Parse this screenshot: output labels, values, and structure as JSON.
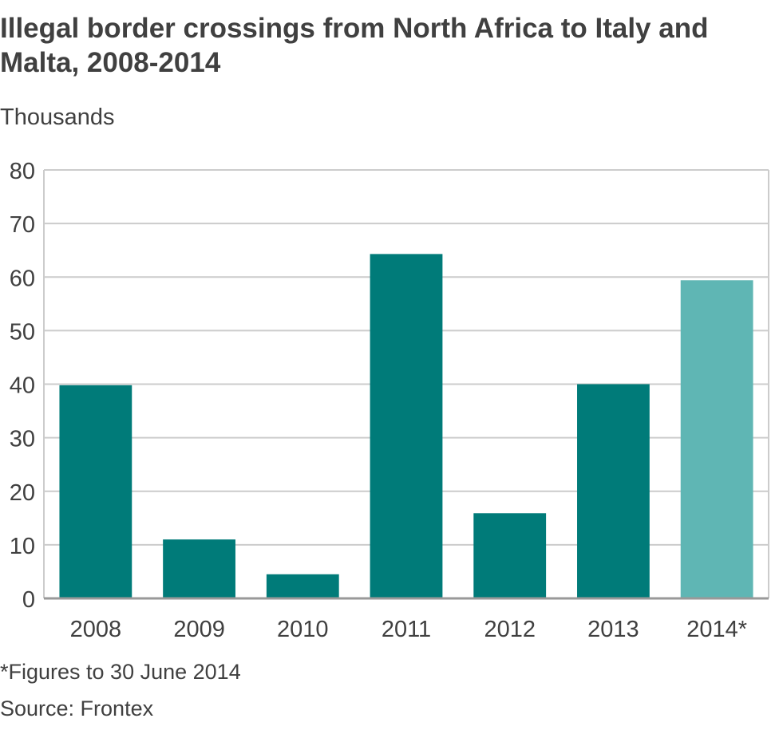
{
  "chart_data": {
    "type": "bar",
    "title": "Illegal border crossings from North Africa to Italy and Malta, 2008-2014",
    "subtitle": "Thousands",
    "categories": [
      "2008",
      "2009",
      "2010",
      "2011",
      "2012",
      "2013",
      "2014*"
    ],
    "values": [
      39.8,
      11,
      4.5,
      64.3,
      15.9,
      40,
      59.4
    ],
    "ylim": [
      0,
      80
    ],
    "yticks": [
      "0",
      "10",
      "20",
      "30",
      "40",
      "50",
      "60",
      "70",
      "80"
    ],
    "grid": true,
    "note": "*Figures to 30 June 2014",
    "source": "Source: Frontex",
    "colors": {
      "bar": "#007b79",
      "bar_highlight": "#5fb6b4",
      "grid": "#cccccc",
      "axis": "#999999",
      "text": "#404040"
    },
    "highlight_index": 6
  }
}
